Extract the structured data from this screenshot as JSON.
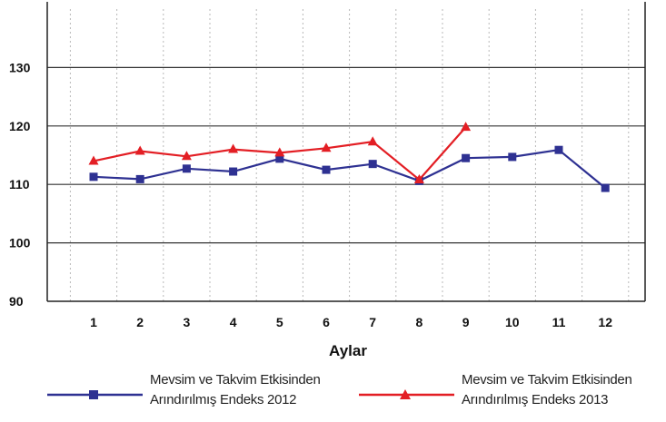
{
  "chart_data": {
    "type": "line",
    "title": "",
    "xlabel": "Aylar",
    "ylabel": "",
    "x": [
      "1",
      "2",
      "3",
      "4",
      "5",
      "6",
      "7",
      "8",
      "9",
      "10",
      "11",
      "12"
    ],
    "ylim": [
      90,
      140
    ],
    "yticks": [
      "90",
      "100",
      "110",
      "120",
      "130"
    ],
    "grid": "horizontal solid at ticks, vertical dotted",
    "legend_position": "bottom",
    "series": [
      {
        "name_line1": "Mevsim ve Takvim Etkisinden",
        "name_line2": "Arındırılmış Endeks 2012",
        "color": "#2e3192",
        "marker": "square",
        "values": [
          111.3,
          110.9,
          112.7,
          112.2,
          114.4,
          112.5,
          113.5,
          110.6,
          114.5,
          114.7,
          115.9,
          109.4
        ]
      },
      {
        "name_line1": "Mevsim ve Takvim Etkisinden",
        "name_line2": "Arındırılmış Endeks 2013",
        "color": "#e31e24",
        "marker": "triangle",
        "values": [
          114.0,
          115.7,
          114.8,
          116.0,
          115.4,
          116.2,
          117.3,
          110.8,
          119.8,
          null,
          null,
          null
        ]
      }
    ]
  }
}
